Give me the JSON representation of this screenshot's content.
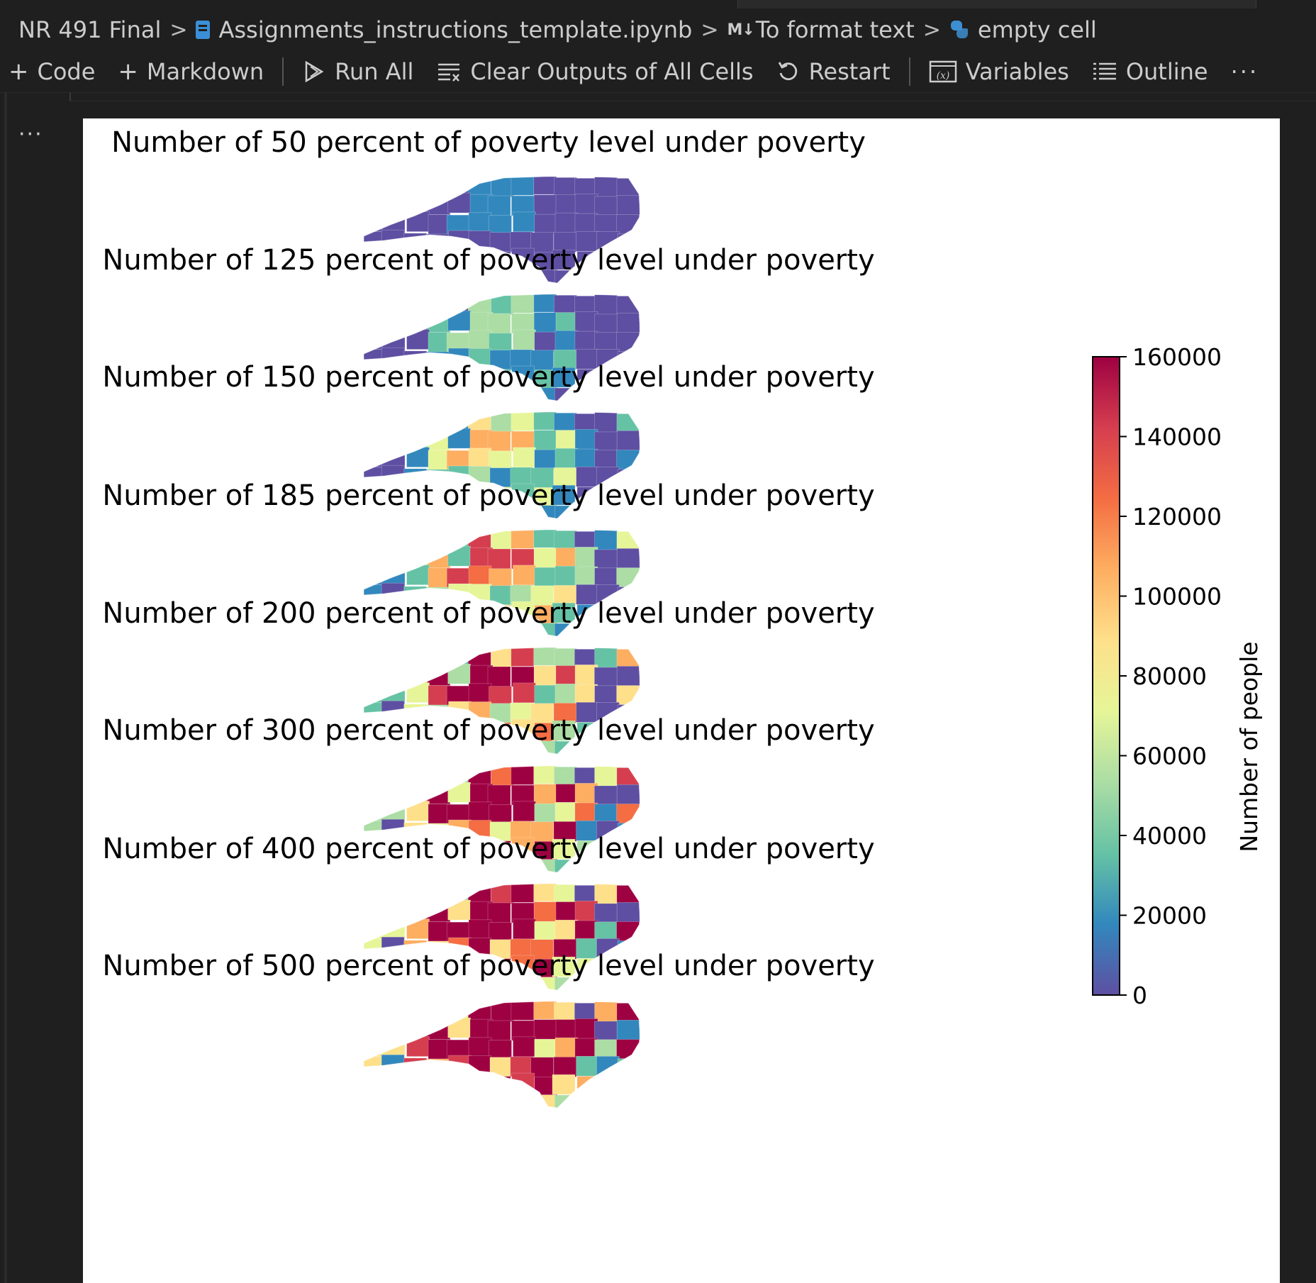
{
  "breadcrumb": {
    "folder": "NR 491 Final",
    "notebook": "Assignments_instructions_template.ipynb",
    "markdown_badge": "M↓",
    "section": "To format text",
    "cell": "empty cell"
  },
  "toolbar": {
    "code": "Code",
    "markdown": "Markdown",
    "run_all": "Run All",
    "clear_outputs": "Clear Outputs of All Cells",
    "restart": "Restart",
    "variables": "Variables",
    "outline": "Outline",
    "more": "···"
  },
  "cell": {
    "menu": "···"
  },
  "figure": {
    "map_titles": [
      "Number of 50 percent of poverty level under poverty",
      "Number of 125 percent of poverty level under poverty",
      "Number of 150 percent of poverty level under poverty",
      "Number of 185 percent of poverty level under poverty",
      "Number of 200 percent of poverty level under poverty",
      "Number of 300 percent of poverty level under poverty",
      "Number of 400 percent of poverty level under poverty",
      "Number of 500 percent of poverty level under poverty"
    ],
    "colorbar": {
      "label": "Number of people",
      "ticks": [
        0,
        20000,
        40000,
        60000,
        80000,
        100000,
        120000,
        140000,
        160000
      ],
      "range": [
        0,
        160000
      ],
      "colormap": "Spectral_r",
      "colors": [
        "#5e4fa2",
        "#3288bd",
        "#66c2a5",
        "#abdda4",
        "#e6f598",
        "#fee08b",
        "#fdae61",
        "#f46d43",
        "#d53e4f",
        "#9e0142"
      ]
    }
  },
  "colors": {
    "editor_bg": "#1f1f1f",
    "output_bg": "#ffffff",
    "text": "#cccccc"
  }
}
